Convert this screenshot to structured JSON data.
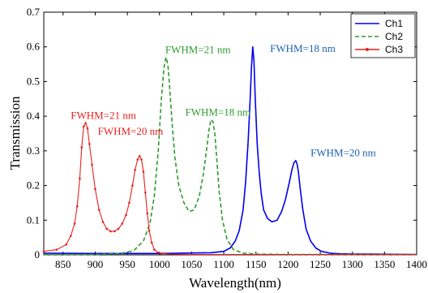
{
  "chart_data": {
    "type": "line",
    "title": "",
    "xlabel": "Wavelength(nm)",
    "ylabel": "Transmission",
    "xlim": [
      820,
      1400
    ],
    "ylim": [
      0,
      0.7
    ],
    "xticks": [
      850,
      900,
      950,
      1000,
      1050,
      1100,
      1150,
      1200,
      1250,
      1300,
      1350,
      1400
    ],
    "yticks": [
      0,
      0.1,
      0.2,
      0.3,
      0.4,
      0.5,
      0.6,
      0.7
    ],
    "grid": false,
    "legend": "top-right",
    "series": [
      {
        "name": "Ch1",
        "color": "#0000ee",
        "style": "solid",
        "x": [
          820,
          900,
          1000,
          1080,
          1100,
          1110,
          1118,
          1124,
          1130,
          1134,
          1138,
          1141,
          1143,
          1145,
          1147,
          1149,
          1152,
          1155,
          1158,
          1162,
          1168,
          1175,
          1183,
          1190,
          1196,
          1202,
          1206,
          1209,
          1212,
          1214,
          1216,
          1219,
          1223,
          1228,
          1235,
          1243,
          1252,
          1265,
          1280,
          1300,
          1330,
          1400
        ],
        "y": [
          0.005,
          0.004,
          0.004,
          0.006,
          0.01,
          0.02,
          0.04,
          0.07,
          0.13,
          0.21,
          0.33,
          0.45,
          0.54,
          0.6,
          0.56,
          0.45,
          0.32,
          0.24,
          0.18,
          0.13,
          0.105,
          0.095,
          0.1,
          0.125,
          0.16,
          0.21,
          0.245,
          0.265,
          0.272,
          0.262,
          0.24,
          0.19,
          0.13,
          0.075,
          0.04,
          0.02,
          0.01,
          0.005,
          0.003,
          0.002,
          0.002,
          0.001
        ]
      },
      {
        "name": "Ch2",
        "color": "#2e9a2e",
        "style": "dashed",
        "x": [
          820,
          900,
          940,
          960,
          975,
          985,
          992,
          998,
          1003,
          1007,
          1010,
          1013,
          1016,
          1020,
          1024,
          1030,
          1038,
          1046,
          1054,
          1062,
          1068,
          1073,
          1077,
          1080,
          1083,
          1086,
          1089,
          1093,
          1098,
          1105,
          1115,
          1130,
          1150,
          1200,
          1400
        ],
        "y": [
          0.001,
          0.001,
          0.004,
          0.012,
          0.04,
          0.09,
          0.17,
          0.3,
          0.45,
          0.54,
          0.57,
          0.55,
          0.48,
          0.37,
          0.28,
          0.2,
          0.15,
          0.125,
          0.13,
          0.17,
          0.23,
          0.3,
          0.36,
          0.39,
          0.385,
          0.35,
          0.28,
          0.18,
          0.1,
          0.045,
          0.015,
          0.005,
          0.002,
          0.001,
          0.001
        ]
      },
      {
        "name": "Ch3",
        "color": "#e82020",
        "style": "solid-marker",
        "x": [
          820,
          840,
          855,
          862,
          868,
          872,
          876,
          879,
          882,
          885,
          888,
          891,
          895,
          900,
          906,
          912,
          918,
          924,
          930,
          936,
          942,
          948,
          953,
          958,
          962,
          966,
          969,
          972,
          975,
          978,
          981,
          984,
          988,
          992,
          997,
          1003,
          1010,
          1020,
          1050,
          1100,
          1400
        ],
        "y": [
          0.01,
          0.015,
          0.03,
          0.055,
          0.09,
          0.14,
          0.22,
          0.31,
          0.37,
          0.38,
          0.365,
          0.32,
          0.26,
          0.19,
          0.13,
          0.095,
          0.075,
          0.068,
          0.068,
          0.075,
          0.09,
          0.115,
          0.15,
          0.2,
          0.245,
          0.275,
          0.285,
          0.275,
          0.24,
          0.18,
          0.12,
          0.07,
          0.035,
          0.015,
          0.007,
          0.004,
          0.003,
          0.002,
          0.001,
          0.001,
          0.001
        ]
      }
    ],
    "annotations": [
      {
        "text": "FWHM=21 nm",
        "x": 862,
        "y": 0.392,
        "color": "#e82020"
      },
      {
        "text": "FWHM=20 nm",
        "x": 904,
        "y": 0.347,
        "color": "#e82020"
      },
      {
        "text": "FWHM=21 nm",
        "x": 1009,
        "y": 0.582,
        "color": "#2e9a2e"
      },
      {
        "text": "FWHM=18 nm",
        "x": 1040,
        "y": 0.402,
        "color": "#2e9a2e"
      },
      {
        "text": "FWHM=18 nm",
        "x": 1172,
        "y": 0.585,
        "color": "#1a5fb4"
      },
      {
        "text": "FWHM=20 nm",
        "x": 1235,
        "y": 0.285,
        "color": "#1a5fb4"
      }
    ]
  }
}
